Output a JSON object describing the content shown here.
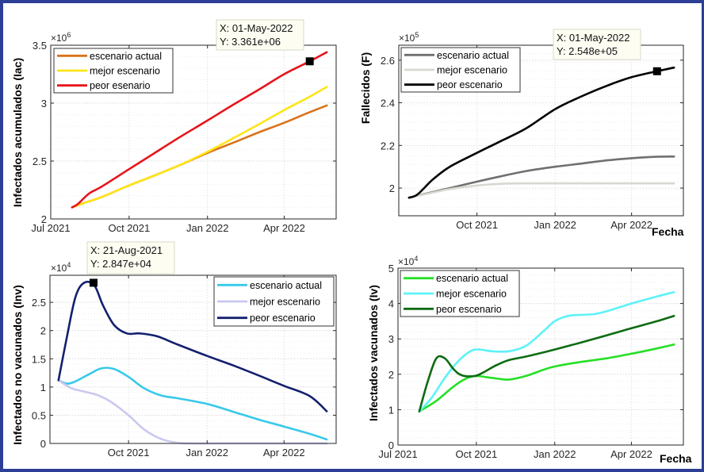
{
  "figure": {
    "frame_color": "#2c3e95"
  },
  "chart_data": [
    {
      "id": "iac",
      "type": "line",
      "title": "",
      "xlabel": "",
      "ylabel": "Infectados acumulados (Iac)",
      "exponent_label": "×10",
      "exponent_power": "6",
      "x_unit": "days since 01-Jul-2021",
      "xlim": [
        0,
        335
      ],
      "ylim": [
        2.0,
        3.5
      ],
      "xticks": [
        0,
        92,
        184,
        274
      ],
      "xtick_labels": [
        "Jul 2021",
        "Oct 2021",
        "Jan 2022",
        "Apr 2022"
      ],
      "yticks": [
        2,
        2.5,
        3,
        3.5
      ],
      "ytick_labels": [
        "2",
        "2.5",
        "3",
        "3.5"
      ],
      "grid": true,
      "legend_position": "top-left",
      "series": [
        {
          "name": "escenario actual",
          "color": "#d9731a",
          "x": [
            25,
            40,
            60,
            92,
            120,
            150,
            184,
            215,
            245,
            274,
            300,
            324
          ],
          "y": [
            2.1,
            2.14,
            2.19,
            2.29,
            2.37,
            2.46,
            2.57,
            2.66,
            2.75,
            2.83,
            2.91,
            2.98
          ]
        },
        {
          "name": "mejor escenario",
          "color": "#ffe417",
          "x": [
            25,
            40,
            60,
            92,
            120,
            150,
            184,
            215,
            245,
            274,
            300,
            324
          ],
          "y": [
            2.1,
            2.14,
            2.19,
            2.29,
            2.37,
            2.46,
            2.58,
            2.7,
            2.82,
            2.94,
            3.04,
            3.14
          ]
        },
        {
          "name": "peor esenario",
          "color": "#e8141a",
          "x": [
            25,
            32,
            45,
            60,
            92,
            120,
            150,
            184,
            215,
            245,
            274,
            304,
            324
          ],
          "y": [
            2.1,
            2.13,
            2.22,
            2.28,
            2.43,
            2.56,
            2.7,
            2.85,
            2.99,
            3.12,
            3.25,
            3.361,
            3.44
          ]
        }
      ],
      "datatip": {
        "x_label": "X: 01-May-2022",
        "y_label": "Y: 3.361e+06",
        "x": 304,
        "y": 3.361,
        "series": "peor esenario"
      }
    },
    {
      "id": "f",
      "type": "line",
      "title": "",
      "xlabel": "Fecha",
      "ylabel": "Fallecidos (F)",
      "exponent_label": "×10",
      "exponent_power": "5",
      "x_unit": "days since 01-Jul-2021",
      "xlim": [
        0,
        335
      ],
      "ylim": [
        1.87,
        2.67
      ],
      "xticks": [
        92,
        184,
        274
      ],
      "xtick_labels": [
        "Oct 2021",
        "Jan 2022",
        "Apr 2022"
      ],
      "yticks": [
        2,
        2.2,
        2.4,
        2.6
      ],
      "ytick_labels": [
        "2",
        "2.2",
        "2.4",
        "2.6"
      ],
      "grid": true,
      "legend_position": "top-left",
      "series": [
        {
          "name": "escenario actual",
          "color": "#707070",
          "x": [
            12,
            30,
            60,
            92,
            120,
            150,
            184,
            215,
            245,
            274,
            304,
            324
          ],
          "y": [
            1.955,
            1.972,
            2.0,
            2.03,
            2.055,
            2.08,
            2.1,
            2.115,
            2.13,
            2.14,
            2.147,
            2.148
          ]
        },
        {
          "name": "mejor escenario",
          "color": "#d8d8d2",
          "x": [
            12,
            30,
            60,
            92,
            120,
            150,
            184,
            215,
            245,
            274,
            304,
            324
          ],
          "y": [
            1.955,
            1.97,
            1.995,
            2.012,
            2.02,
            2.022,
            2.022,
            2.022,
            2.022,
            2.022,
            2.022,
            2.022
          ]
        },
        {
          "name": "peor escenario",
          "color": "#000000",
          "x": [
            12,
            22,
            40,
            60,
            92,
            120,
            150,
            184,
            215,
            245,
            274,
            304,
            324
          ],
          "y": [
            1.955,
            1.97,
            2.04,
            2.1,
            2.165,
            2.22,
            2.28,
            2.37,
            2.43,
            2.48,
            2.52,
            2.548,
            2.565
          ]
        }
      ],
      "datatip": {
        "x_label": "X: 01-May-2022",
        "y_label": "Y: 2.548e+05",
        "x": 304,
        "y": 2.548,
        "series": "peor escenario"
      }
    },
    {
      "id": "inv",
      "type": "line",
      "title": "",
      "xlabel": "",
      "ylabel": "Infectados no vacunados (Inv)",
      "exponent_label": "×10",
      "exponent_power": "4",
      "x_unit": "days since 01-Jul-2021",
      "xlim": [
        0,
        335
      ],
      "ylim": [
        0,
        2.98
      ],
      "xticks": [
        92,
        184,
        274
      ],
      "xtick_labels": [
        "Oct 2021",
        "Jan 2022",
        "Apr 2022"
      ],
      "yticks": [
        0,
        0.5,
        1,
        1.5,
        2,
        2.5
      ],
      "ytick_labels": [
        "0",
        "0.5",
        "1",
        "1.5",
        "2",
        "2.5"
      ],
      "grid": true,
      "legend_position": "top-right",
      "series": [
        {
          "name": "escenario actual",
          "color": "#38c9ea",
          "x": [
            10,
            20,
            30,
            45,
            60,
            75,
            92,
            110,
            130,
            150,
            184,
            215,
            245,
            274,
            304,
            324
          ],
          "y": [
            1.12,
            1.06,
            1.1,
            1.22,
            1.33,
            1.32,
            1.18,
            0.98,
            0.85,
            0.8,
            0.7,
            0.56,
            0.42,
            0.3,
            0.17,
            0.07
          ]
        },
        {
          "name": "mejor escenario",
          "color": "#c9c8ef",
          "x": [
            10,
            25,
            40,
            55,
            70,
            92,
            110,
            130,
            150,
            170,
            184,
            215,
            245,
            274,
            304,
            324
          ],
          "y": [
            1.12,
            0.98,
            0.92,
            0.86,
            0.75,
            0.5,
            0.25,
            0.08,
            0.01,
            0.0,
            0.0,
            0.0,
            0.0,
            0.0,
            0.0,
            0.0
          ]
        },
        {
          "name": "peor escenario",
          "color": "#13206e",
          "x": [
            10,
            20,
            30,
            40,
            52,
            62,
            75,
            90,
            105,
            125,
            150,
            184,
            215,
            245,
            274,
            304,
            324
          ],
          "y": [
            1.12,
            1.9,
            2.6,
            2.847,
            2.8,
            2.45,
            2.1,
            1.95,
            1.95,
            1.9,
            1.75,
            1.55,
            1.38,
            1.2,
            1.02,
            0.84,
            0.57
          ]
        }
      ],
      "datatip": {
        "x_label": "X: 21-Aug-2021",
        "y_label": "Y: 2.847e+04",
        "x": 51,
        "y": 2.847,
        "series": "peor escenario"
      }
    },
    {
      "id": "iv",
      "type": "line",
      "title": "",
      "xlabel": "Fecha",
      "ylabel": "Infectados vacunados (Iv)",
      "exponent_label": "×10",
      "exponent_power": "4",
      "x_unit": "days since 01-Jul-2021",
      "xlim": [
        0,
        335
      ],
      "ylim": [
        0,
        5
      ],
      "xticks": [
        0,
        92,
        184,
        274
      ],
      "xtick_labels": [
        "Jul 2021",
        "Oct 2021",
        "Jan 2022",
        "Apr 2022"
      ],
      "yticks": [
        0,
        1,
        2,
        3,
        4,
        5
      ],
      "ytick_labels": [
        "0",
        "1",
        "2",
        "3",
        "4",
        "5"
      ],
      "grid": true,
      "legend_position": "top-left",
      "series": [
        {
          "name": "escenario actual",
          "color": "#25e025",
          "x": [
            25,
            45,
            65,
            80,
            92,
            110,
            130,
            150,
            170,
            184,
            215,
            245,
            274,
            304,
            324
          ],
          "y": [
            0.95,
            1.25,
            1.65,
            1.88,
            1.95,
            1.9,
            1.85,
            1.95,
            2.12,
            2.22,
            2.35,
            2.45,
            2.58,
            2.73,
            2.84
          ]
        },
        {
          "name": "mejor escenario",
          "color": "#5ef2f8",
          "x": [
            25,
            40,
            55,
            70,
            85,
            95,
            110,
            130,
            150,
            170,
            184,
            200,
            215,
            230,
            245,
            274,
            304,
            324
          ],
          "y": [
            0.95,
            1.35,
            1.9,
            2.35,
            2.65,
            2.7,
            2.65,
            2.65,
            2.8,
            3.2,
            3.5,
            3.65,
            3.68,
            3.7,
            3.78,
            4.0,
            4.2,
            4.32
          ]
        },
        {
          "name": "peor escenario",
          "color": "#0d6b12",
          "x": [
            25,
            35,
            45,
            55,
            65,
            75,
            90,
            100,
            115,
            130,
            150,
            184,
            215,
            245,
            274,
            304,
            324
          ],
          "y": [
            0.95,
            1.8,
            2.45,
            2.45,
            2.15,
            1.97,
            1.95,
            2.05,
            2.25,
            2.4,
            2.5,
            2.7,
            2.9,
            3.1,
            3.3,
            3.5,
            3.65
          ]
        }
      ]
    }
  ]
}
